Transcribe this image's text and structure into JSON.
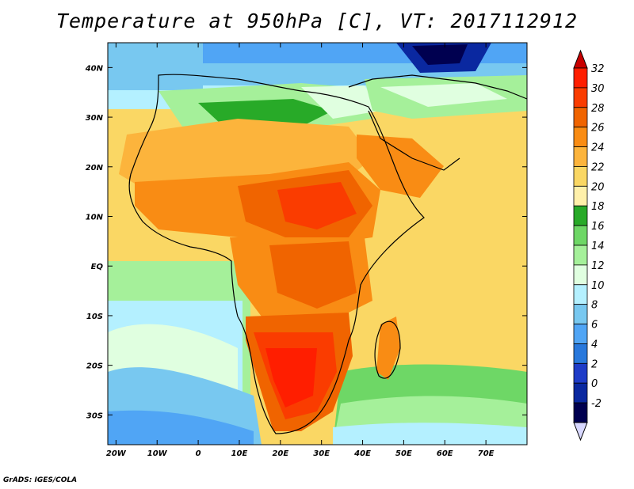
{
  "title": "Temperature at 950hPa [C], VT: 2017112912",
  "credit": "GrADS: IGES/COLA",
  "map": {
    "region": "Africa",
    "projection": "latlon",
    "lon_range": [
      -22,
      80
    ],
    "lat_range": [
      -36,
      45
    ],
    "variable": "Temperature at 950hPa",
    "units": "C"
  },
  "axes": {
    "x_ticks": [
      {
        "lon": -20,
        "label": "20W"
      },
      {
        "lon": -10,
        "label": "10W"
      },
      {
        "lon": 0,
        "label": "0"
      },
      {
        "lon": 10,
        "label": "10E"
      },
      {
        "lon": 20,
        "label": "20E"
      },
      {
        "lon": 30,
        "label": "30E"
      },
      {
        "lon": 40,
        "label": "40E"
      },
      {
        "lon": 50,
        "label": "50E"
      },
      {
        "lon": 60,
        "label": "60E"
      },
      {
        "lon": 70,
        "label": "70E"
      }
    ],
    "y_ticks": [
      {
        "lat": 40,
        "label": "40N"
      },
      {
        "lat": 30,
        "label": "30N"
      },
      {
        "lat": 20,
        "label": "20N"
      },
      {
        "lat": 10,
        "label": "10N"
      },
      {
        "lat": 0,
        "label": "EQ"
      },
      {
        "lat": -10,
        "label": "10S"
      },
      {
        "lat": -20,
        "label": "20S"
      },
      {
        "lat": -30,
        "label": "30S"
      }
    ]
  },
  "colorbar": {
    "labels": [
      "32",
      "30",
      "28",
      "26",
      "24",
      "22",
      "20",
      "18",
      "16",
      "14",
      "12",
      "10",
      "8",
      "6",
      "4",
      "2",
      "0",
      "-2"
    ],
    "colors": [
      "#ff1e00",
      "#fa3c00",
      "#f06400",
      "#f98c14",
      "#fcb43c",
      "#fad764",
      "#fff0aa",
      "#28aa28",
      "#6ed766",
      "#a5f09a",
      "#e0ffe0",
      "#b4f0ff",
      "#78c8f0",
      "#50a5f5",
      "#2878dc",
      "#1e3cc8",
      "#0a28a0",
      "#000050"
    ],
    "top_color": "#c80000",
    "bottom_color": "#d8d8ff"
  }
}
